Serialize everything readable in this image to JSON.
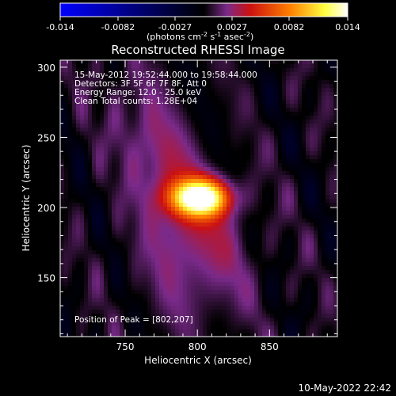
{
  "colorbar": {
    "ticks": [
      "-0.014",
      "-0.0082",
      "-0.0027",
      "0.0027",
      "0.0082",
      "0.014"
    ],
    "range": [
      -0.014,
      0.014
    ],
    "unit_label": "(photons cm",
    "unit_sup1": "-2",
    "unit_mid": " s",
    "unit_sup2": "-1",
    "unit_mid2": " asec",
    "unit_sup3": "-2",
    "unit_end": ")",
    "stops": [
      "#0000ff",
      "#000000",
      "#7a2a8a",
      "#cc1010",
      "#ff8000",
      "#ffff40",
      "#ffffff"
    ]
  },
  "chart_data": {
    "type": "heatmap",
    "title": "Reconstructed RHESSI Image",
    "xlabel": "Heliocentric X (arcsec)",
    "ylabel": "Heliocentric Y (arcsec)",
    "xlim": [
      705,
      897
    ],
    "ylim": [
      108,
      305
    ],
    "xticks": [
      750,
      800,
      850
    ],
    "yticks": [
      150,
      200,
      250,
      300
    ],
    "peak": {
      "x": 802,
      "y": 207
    },
    "info_lines": [
      "15-May-2012 19:52:44.000 to 19:58:44.000",
      "Detectors: 3F 5F 6F 7F 8F, Att 0",
      "Energy Range: 12.0 - 25.0 keV",
      "Clean     Total counts: 1.28E+04"
    ],
    "peak_label": "Position of Peak = [802,207]"
  },
  "footer": {
    "timestamp": "10-May-2022 22:42"
  }
}
